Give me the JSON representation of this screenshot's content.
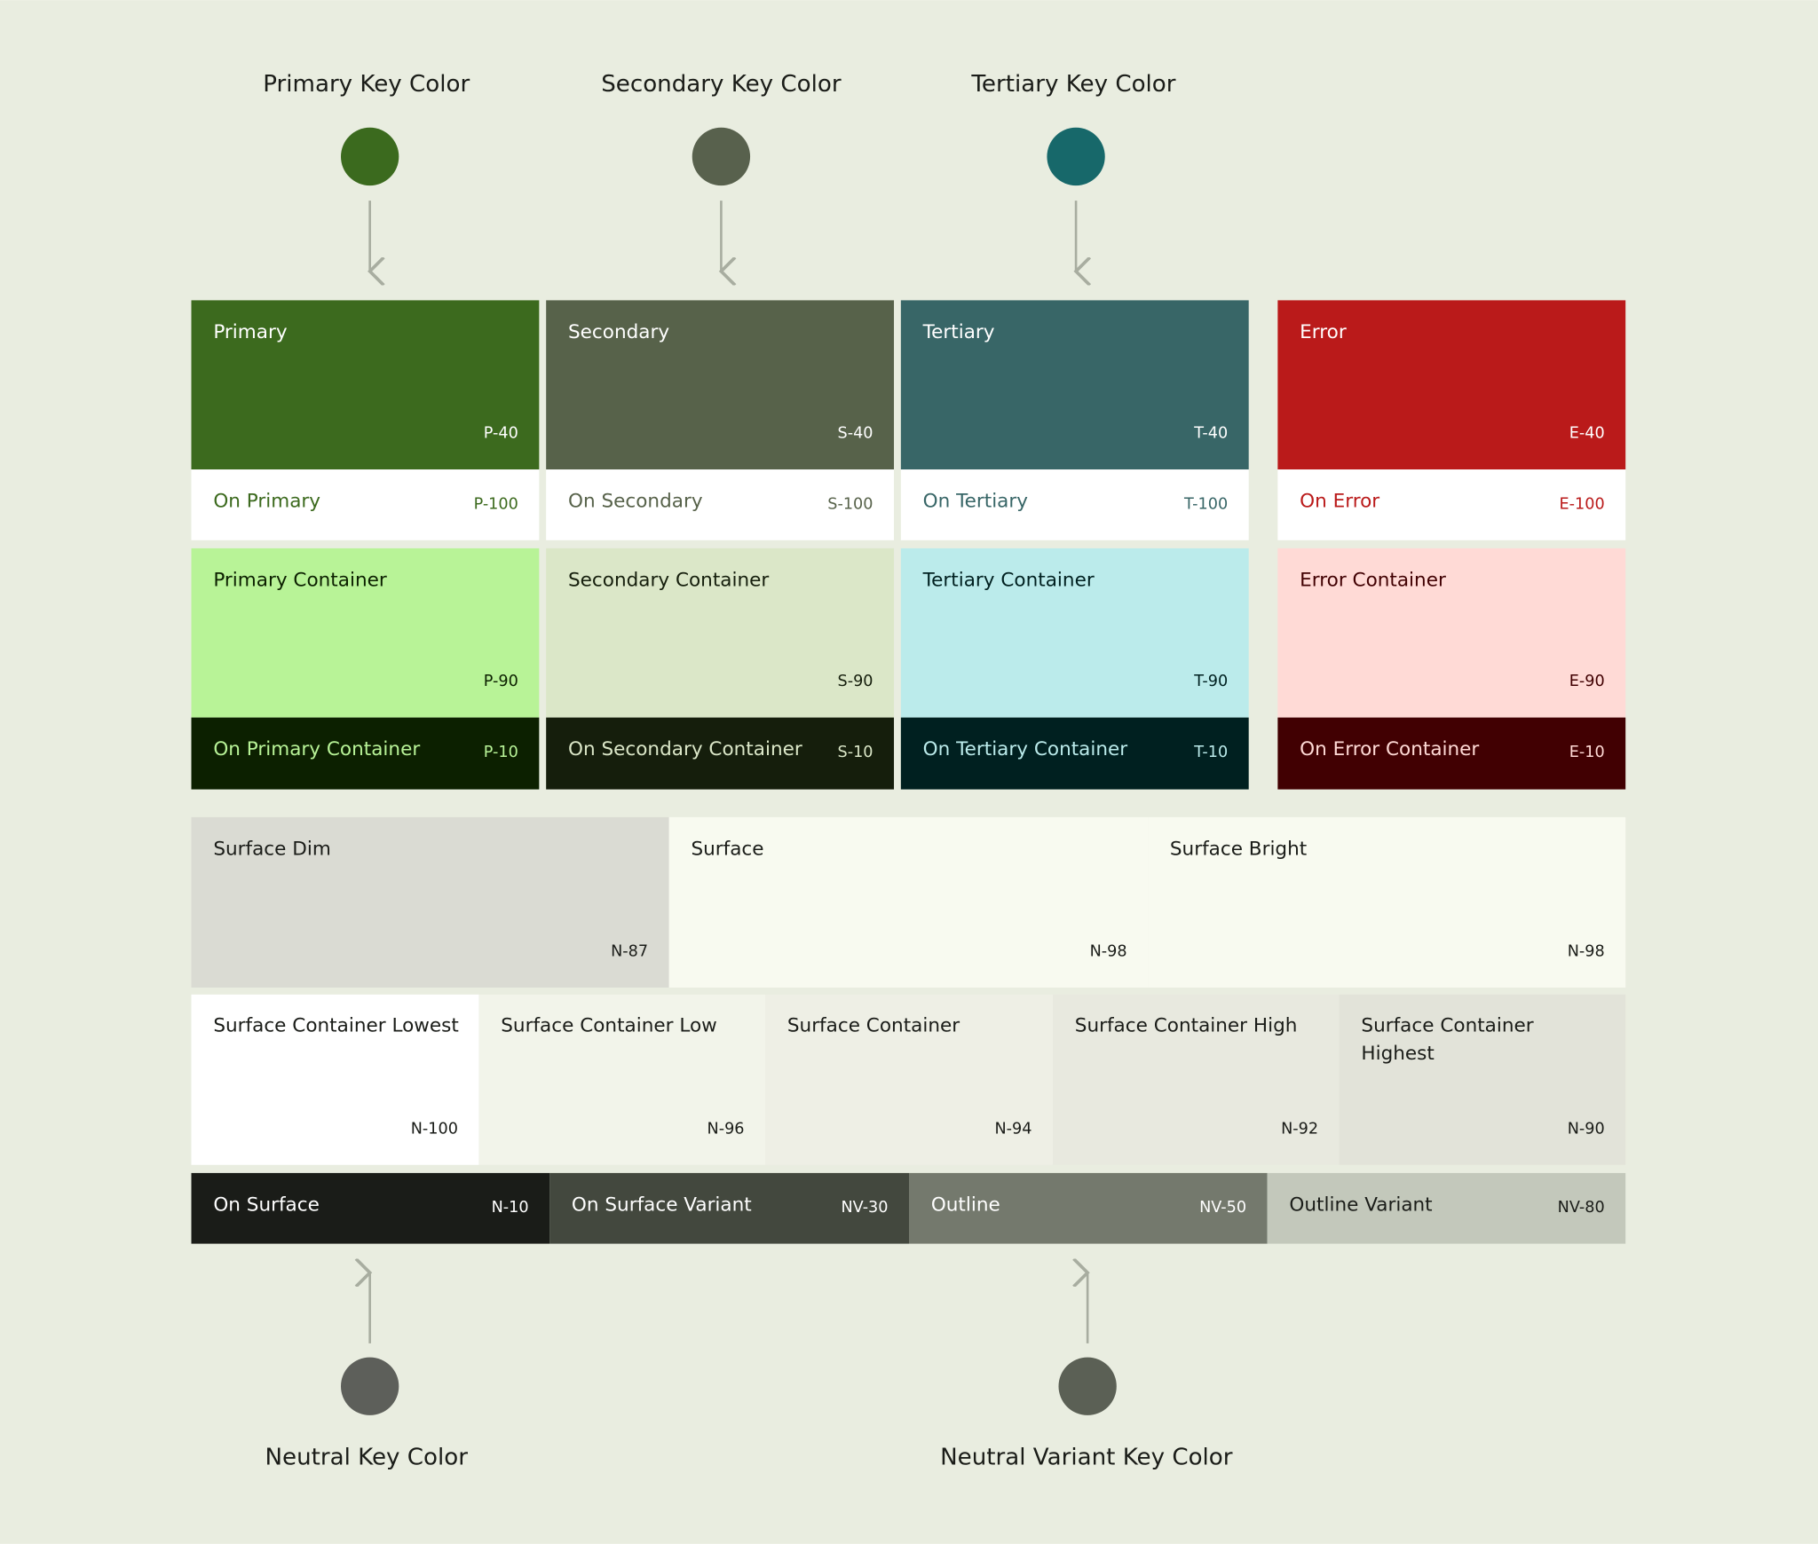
{
  "background": "#e9ede0",
  "top_key_colors": [
    {
      "label": "Primary Key Color",
      "color": "#3b6a1e"
    },
    {
      "label": "Secondary Key Color",
      "color": "#58614d"
    },
    {
      "label": "Tertiary Key Color",
      "color": "#17686a"
    }
  ],
  "columns": [
    {
      "tiles": [
        {
          "label": "Primary",
          "code": "P-40",
          "bg": "#3c6a1e",
          "fg": "#ffffff"
        },
        {
          "label": "On Primary",
          "code": "P-100",
          "bg": "#ffffff",
          "fg": "#3c6a1e"
        },
        {
          "label": "Primary Container",
          "code": "P-90",
          "bg": "#b8f397",
          "fg": "#0c2000"
        },
        {
          "label": "On Primary Container",
          "code": "P-10",
          "bg": "#0c2000",
          "fg": "#b8f397"
        }
      ]
    },
    {
      "tiles": [
        {
          "label": "Secondary",
          "code": "S-40",
          "bg": "#57624a",
          "fg": "#ffffff"
        },
        {
          "label": "On Secondary",
          "code": "S-100",
          "bg": "#ffffff",
          "fg": "#57624a"
        },
        {
          "label": "Secondary Container",
          "code": "S-90",
          "bg": "#dbe7c8",
          "fg": "#151e0c"
        },
        {
          "label": "On Secondary Container",
          "code": "S-10",
          "bg": "#151e0c",
          "fg": "#dbe7c8"
        }
      ]
    },
    {
      "tiles": [
        {
          "label": "Tertiary",
          "code": "T-40",
          "bg": "#386667",
          "fg": "#ffffff"
        },
        {
          "label": "On Tertiary",
          "code": "T-100",
          "bg": "#ffffff",
          "fg": "#386667"
        },
        {
          "label": "Tertiary Container",
          "code": "T-90",
          "bg": "#bbebeb",
          "fg": "#002020"
        },
        {
          "label": "On Tertiary Container",
          "code": "T-10",
          "bg": "#002020",
          "fg": "#bbebeb"
        }
      ]
    },
    {
      "tiles": [
        {
          "label": "Error",
          "code": "E-40",
          "bg": "#ba1a1a",
          "fg": "#ffffff"
        },
        {
          "label": "On Error",
          "code": "E-100",
          "bg": "#ffffff",
          "fg": "#ba1a1a"
        },
        {
          "label": "Error Container",
          "code": "E-90",
          "bg": "#ffdad6",
          "fg": "#410002"
        },
        {
          "label": "On Error Container",
          "code": "E-10",
          "bg": "#410002",
          "fg": "#ffdad6"
        }
      ]
    }
  ],
  "surface_row": [
    {
      "label": "Surface Dim",
      "code": "N-87",
      "bg": "#dadbd3",
      "fg": "#1a1c18"
    },
    {
      "label": "Surface",
      "code": "N-98",
      "bg": "#f8faf0",
      "fg": "#1a1c18"
    },
    {
      "label": "Surface Bright",
      "code": "N-98",
      "bg": "#f8faf0",
      "fg": "#1a1c18"
    }
  ],
  "container_row": [
    {
      "label": "Surface Container Lowest",
      "code": "N-100",
      "bg": "#ffffff",
      "fg": "#1a1c18"
    },
    {
      "label": "Surface Container Low",
      "code": "N-96",
      "bg": "#f2f4ea",
      "fg": "#1a1c18"
    },
    {
      "label": "Surface Container",
      "code": "N-94",
      "bg": "#eeefe5",
      "fg": "#1a1c18"
    },
    {
      "label": "Surface Container High",
      "code": "N-92",
      "bg": "#e8e9df",
      "fg": "#1a1c18"
    },
    {
      "label": "Surface Container Highest",
      "code": "N-90",
      "bg": "#e2e3d9",
      "fg": "#1a1c18"
    }
  ],
  "on_surface_row": [
    {
      "label": "On Surface",
      "code": "N-10",
      "bg": "#1a1c18",
      "fg": "#ffffff"
    },
    {
      "label": "On Surface Variant",
      "code": "NV-30",
      "bg": "#43483e",
      "fg": "#ffffff"
    },
    {
      "label": "Outline",
      "code": "NV-50",
      "bg": "#74796d",
      "fg": "#ffffff"
    },
    {
      "label": "Outline Variant",
      "code": "NV-80",
      "bg": "#c3c8bb",
      "fg": "#1a1c18"
    }
  ],
  "bottom_key_colors": [
    {
      "label": "Neutral Key Color",
      "color": "#5d5f5a"
    },
    {
      "label": "Neutral Variant Key Color",
      "color": "#5b6055"
    }
  ]
}
